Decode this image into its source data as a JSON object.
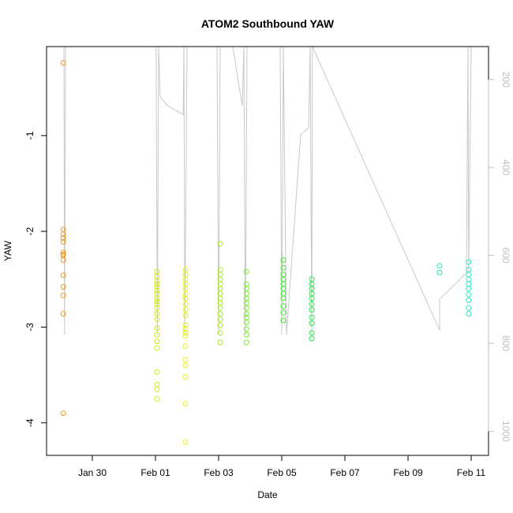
{
  "chart_data": {
    "type": "scatter",
    "title": "ATOM2 Southbound YAW",
    "xlabel": "Date",
    "ylabel": "YAW",
    "x_ticks": [
      {
        "label": "Jan 30",
        "day": 30
      },
      {
        "label": "Feb 01",
        "day": 32
      },
      {
        "label": "Feb 03",
        "day": 34
      },
      {
        "label": "Feb 05",
        "day": 36
      },
      {
        "label": "Feb 07",
        "day": 38
      },
      {
        "label": "Feb 09",
        "day": 40
      },
      {
        "label": "Feb 11",
        "day": 42
      }
    ],
    "xlim": [
      28.55,
      42.55
    ],
    "ylim": [
      -4.34,
      -0.07
    ],
    "y_ticks": [
      -1,
      -2,
      -3,
      -4
    ],
    "y2_ticks": [
      200,
      400,
      600,
      800,
      1000
    ],
    "y2lim": [
      1055,
      125
    ],
    "line_color": "#c8c8c8",
    "point_radius": 3,
    "clusters": [
      {
        "x": 29.08,
        "color": "#f39a1a",
        "y": [
          -0.24,
          -1.98,
          -2.03,
          -2.07,
          -2.11,
          -2.22,
          -2.24,
          -2.25,
          -2.3,
          -2.46,
          -2.58,
          -2.67,
          -2.86,
          -3.9
        ]
      },
      {
        "x": 32.05,
        "color": "#d2e81c",
        "y": [
          -2.42,
          -2.47,
          -2.52,
          -2.55,
          -2.58,
          -2.62,
          -2.65,
          -2.7,
          -2.73,
          -2.76,
          -2.8,
          -2.86,
          -2.92,
          -3.01,
          -3.08,
          -3.15,
          -3.22,
          -3.47,
          -3.6,
          -3.65,
          -3.75
        ]
      },
      {
        "x": 32.95,
        "color": "#e9ef19",
        "y": [
          -2.4,
          -2.45,
          -2.5,
          -2.55,
          -2.6,
          -2.66,
          -2.7,
          -2.76,
          -2.82,
          -2.88,
          -2.98,
          -3.02,
          -3.06,
          -3.09,
          -3.2,
          -3.34,
          -3.4,
          -3.52,
          -3.8,
          -4.2
        ]
      },
      {
        "x": 34.05,
        "color": "#aaef22",
        "y": [
          -2.13,
          -2.4,
          -2.45,
          -2.5,
          -2.55,
          -2.6,
          -2.65,
          -2.7,
          -2.75,
          -2.8,
          -2.86,
          -2.92,
          -2.98,
          -3.06,
          -3.16
        ]
      },
      {
        "x": 34.88,
        "color": "#78ec2a",
        "y": [
          -2.42,
          -2.55,
          -2.6,
          -2.65,
          -2.7,
          -2.75,
          -2.8,
          -2.86,
          -2.9,
          -2.95,
          -3.02,
          -3.08,
          -3.16
        ]
      },
      {
        "x": 36.05,
        "color": "#3de830",
        "y": [
          -2.3,
          -2.38,
          -2.45,
          -2.5,
          -2.55,
          -2.6,
          -2.65,
          -2.7,
          -2.78,
          -2.85,
          -2.93
        ]
      },
      {
        "x": 36.95,
        "color": "#22e84a",
        "y": [
          -2.5,
          -2.55,
          -2.6,
          -2.65,
          -2.7,
          -2.76,
          -2.82,
          -2.9,
          -2.96,
          -3.06,
          -3.12
        ]
      },
      {
        "x": 41.0,
        "color": "#22e8a8",
        "y": [
          -2.36,
          -2.43
        ]
      },
      {
        "x": 41.92,
        "color": "#2ae8c8",
        "y": [
          -2.32,
          -2.4,
          -2.45,
          -2.5,
          -2.55,
          -2.6,
          -2.66,
          -2.72,
          -2.8,
          -2.86
        ]
      }
    ],
    "right_axis_series": {
      "color": "#c8c8c8",
      "x": [
        29.05,
        29.1,
        29.12,
        29.15,
        31.0,
        32.02,
        32.06,
        32.1,
        32.15,
        32.4,
        32.88,
        32.9,
        32.93,
        33.0,
        33.95,
        34.0,
        34.05,
        34.1,
        34.45,
        34.75,
        34.8,
        34.85,
        34.9,
        35.95,
        36.0,
        36.05,
        36.15,
        36.6,
        36.85,
        36.9,
        36.95,
        36.97,
        41.0,
        41.0,
        41.85,
        41.9,
        41.92,
        42.0
      ],
      "y": [
        125,
        125,
        780,
        125,
        125,
        125,
        780,
        125,
        240,
        260,
        280,
        125,
        780,
        125,
        125,
        780,
        125,
        125,
        125,
        260,
        125,
        780,
        125,
        125,
        780,
        125,
        780,
        325,
        310,
        125,
        780,
        125,
        770,
        700,
        640,
        125,
        640,
        125
      ]
    }
  }
}
